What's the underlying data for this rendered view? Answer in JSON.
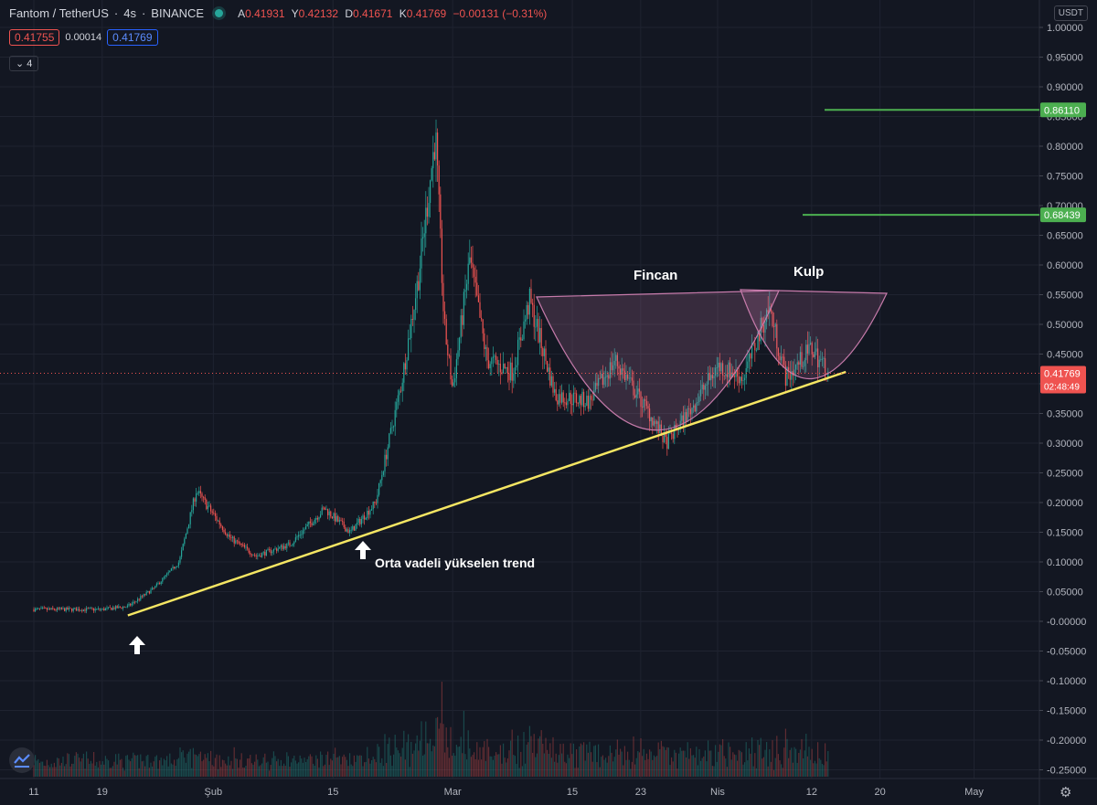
{
  "header": {
    "symbol": "Fantom / TetherUS",
    "interval": "4s",
    "exchange": "BINANCE",
    "ohlc": [
      {
        "key": "A",
        "value": "0.41931"
      },
      {
        "key": "Y",
        "value": "0.42132"
      },
      {
        "key": "D",
        "value": "0.41671"
      },
      {
        "key": "K",
        "value": "0.41769"
      }
    ],
    "change": "−0.00131 (−0.31%)"
  },
  "prices": {
    "sell": "0.41755",
    "spread": "0.00014",
    "buy": "0.41769"
  },
  "indicator_count": "4",
  "currency": "USDT",
  "colors": {
    "up": "#26a69a",
    "down": "#ef5350",
    "trend": "#f5e663",
    "level": "#4caf50",
    "pattern": "#c77bab"
  },
  "chart_data": {
    "type": "candlestick",
    "ylim": [
      -0.26,
      1.02
    ],
    "yticks": [
      "1.00000",
      "0.95000",
      "0.90000",
      "0.85000",
      "0.80000",
      "0.75000",
      "0.70000",
      "0.65000",
      "0.60000",
      "0.55000",
      "0.50000",
      "0.45000",
      "0.40000",
      "0.35000",
      "0.30000",
      "0.25000",
      "0.20000",
      "0.15000",
      "0.10000",
      "0.05000",
      "-0.00000",
      "-0.05000",
      "-0.10000",
      "-0.15000",
      "-0.20000",
      "-0.25000"
    ],
    "xticks": [
      "11",
      "19",
      "Şub",
      "15",
      "Mar",
      "15",
      "23",
      "Nis",
      "12",
      "20",
      "May"
    ],
    "price_path": [
      {
        "date": "11 Oca",
        "price": 0.02
      },
      {
        "date": "19 Oca",
        "price": 0.02
      },
      {
        "date": "22 Oca",
        "price": 0.025
      },
      {
        "date": "25 Oca",
        "price": 0.055
      },
      {
        "date": "28 Oca",
        "price": 0.1
      },
      {
        "date": "30 Oca",
        "price": 0.22
      },
      {
        "date": "3 Şub",
        "price": 0.14
      },
      {
        "date": "6 Şub",
        "price": 0.11
      },
      {
        "date": "10 Şub",
        "price": 0.13
      },
      {
        "date": "14 Şub",
        "price": 0.19
      },
      {
        "date": "17 Şub",
        "price": 0.15
      },
      {
        "date": "20 Şub",
        "price": 0.2
      },
      {
        "date": "23 Şub",
        "price": 0.4
      },
      {
        "date": "25 Şub",
        "price": 0.58
      },
      {
        "date": "27 Şub",
        "price": 0.82
      },
      {
        "date": "28 Şub",
        "price": 0.5
      },
      {
        "date": "1 Mar",
        "price": 0.39
      },
      {
        "date": "3 Mar",
        "price": 0.61
      },
      {
        "date": "5 Mar",
        "price": 0.44
      },
      {
        "date": "8 Mar",
        "price": 0.42
      },
      {
        "date": "10 Mar",
        "price": 0.54
      },
      {
        "date": "13 Mar",
        "price": 0.38
      },
      {
        "date": "17 Mar",
        "price": 0.37
      },
      {
        "date": "20 Mar",
        "price": 0.44
      },
      {
        "date": "24 Mar",
        "price": 0.35
      },
      {
        "date": "26 Mar",
        "price": 0.3
      },
      {
        "date": "29 Mar",
        "price": 0.36
      },
      {
        "date": "1 Nis",
        "price": 0.43
      },
      {
        "date": "4 Nis",
        "price": 0.41
      },
      {
        "date": "7 Nis",
        "price": 0.53
      },
      {
        "date": "9 Nis",
        "price": 0.41
      },
      {
        "date": "12 Nis",
        "price": 0.46
      },
      {
        "date": "14 Nis",
        "price": 0.4177
      }
    ],
    "last_price": "0.41769",
    "countdown": "02:48:49",
    "levels": [
      {
        "label": "0.86110",
        "value": 0.8611
      },
      {
        "label": "0.68439",
        "value": 0.68439
      }
    ],
    "trendline": [
      {
        "date": "22 Oca",
        "price": 0.01
      },
      {
        "date": "16 Nis",
        "price": 0.42
      }
    ],
    "annotations": {
      "cup": "Fincan",
      "handle": "Kulp",
      "trend": "Orta vadeli yükselen trend"
    }
  }
}
